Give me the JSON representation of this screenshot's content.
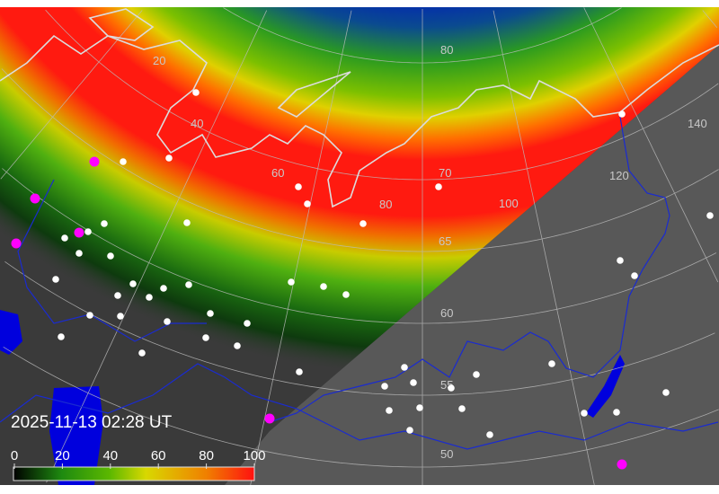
{
  "timestamp": "2025-11-13 02:28 UT",
  "colorbar": {
    "ticks": [
      "0",
      "20",
      "40",
      "60",
      "80",
      "100"
    ],
    "colors": [
      "#000000",
      "#1e8a10",
      "#5cb800",
      "#d8d800",
      "#f08000",
      "#ff1010"
    ]
  },
  "grid_labels": {
    "latitudes": [
      "80",
      "70",
      "65",
      "60",
      "55",
      "50"
    ],
    "longitudes": [
      "20",
      "40",
      "60",
      "80",
      "100",
      "120",
      "140"
    ]
  },
  "colors": {
    "night": "#3a3a3a",
    "day": "#585858",
    "water": "#0000dd",
    "border": "#1a2bd0",
    "coast": "#d8d8d8",
    "city": "#ffffff",
    "marker": "#ff00ff"
  }
}
